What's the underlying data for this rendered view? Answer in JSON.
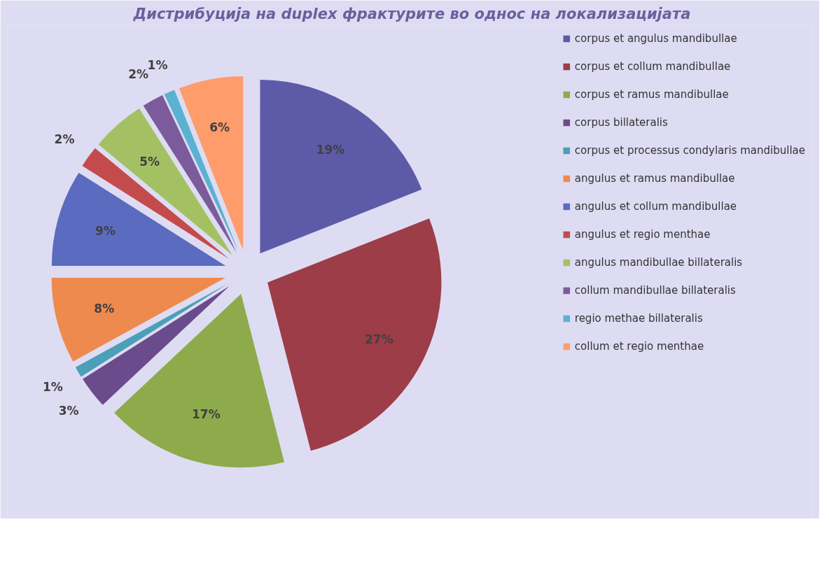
{
  "chart_data": {
    "type": "pie",
    "title": "Дистрибуција на duplex фрактурите во однос на локализацијата",
    "categories": [
      "corpus et angulus mandibullae",
      "corpus et collum mandibullae",
      "corpus et ramus mandibullae",
      "corpus billateralis",
      "corpus et processus condylaris mandibullae",
      "angulus et ramus mandibullae",
      "angulus et collum mandibullae",
      "angulus et regio menthae",
      "angulus mandibullae billateralis",
      "collum mandibullae billateralis",
      "regio methae billateralis",
      "collum et regio menthae"
    ],
    "values": [
      19,
      27,
      17,
      3,
      1,
      8,
      9,
      2,
      5,
      2,
      1,
      6
    ],
    "value_labels": [
      "19%",
      "27%",
      "17%",
      "3%",
      "1%",
      "8%",
      "9%",
      "2%",
      "5%",
      "2%",
      "1%",
      "6%"
    ],
    "colors": [
      "#5d5aa8",
      "#9c3d48",
      "#8eab4c",
      "#6a4b8c",
      "#4b9fb8",
      "#ef8a4e",
      "#5b6bc0",
      "#c44b4b",
      "#a3c163",
      "#7b5b9b",
      "#5ab1d1",
      "#ff9c6c"
    ],
    "legend": "right"
  }
}
